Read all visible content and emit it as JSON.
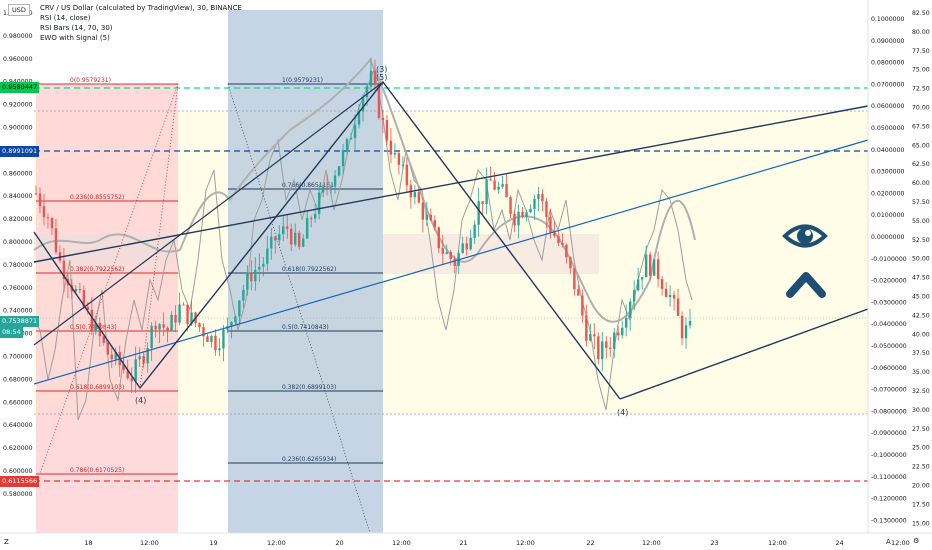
{
  "header": {
    "title": "CRV / US Dollar (calculated by TradingView), 30, BINANCE",
    "indicators": [
      "RSI (14, close)",
      "RSI Bars (14, 70, 30)",
      "EWO with Signal (5)"
    ],
    "currency_button": "USD"
  },
  "price_axis_left": [
    "1.000000",
    "0.980000",
    "0.960000",
    "0.940000",
    "0.920000",
    "0.900000",
    "0.880000",
    "0.860000",
    "0.840000",
    "0.820000",
    "0.800000",
    "0.780000",
    "0.760000",
    "0.740000",
    "0.720000",
    "0.700000",
    "0.680000",
    "0.660000",
    "0.640000",
    "0.620000",
    "0.600000",
    "0.580000"
  ],
  "ewo_axis_right": [
    "0.1000000",
    "0.0900000",
    "0.0800000",
    "0.0700000",
    "0.0600000",
    "0.0500000",
    "0.0400000",
    "0.0300000",
    "0.0200000",
    "0.0100000",
    "0.0000000",
    "-0.0100000",
    "-0.0200000",
    "-0.0300000",
    "-0.0400000",
    "-0.0500000",
    "-0.0600000",
    "-0.0700000",
    "-0.0800000",
    "-0.0900000",
    "-0.1000000",
    "-0.1100000",
    "-0.1200000",
    "-0.1300000"
  ],
  "rsi_axis_right": [
    "82.50",
    "80.00",
    "77.50",
    "75.00",
    "72.50",
    "70.00",
    "67.50",
    "65.00",
    "62.50",
    "60.00",
    "57.50",
    "55.00",
    "52.50",
    "50.00",
    "47.50",
    "45.00",
    "42.50",
    "40.00",
    "37.50",
    "35.00",
    "32.50",
    "30.00",
    "27.50",
    "25.00",
    "22.50",
    "20.00",
    "17.50",
    "15.00"
  ],
  "time_axis": [
    "18",
    "12:00",
    "19",
    "12:00",
    "20",
    "12:00",
    "21",
    "12:00",
    "22",
    "12:00",
    "23",
    "12:00",
    "24",
    "12:00"
  ],
  "price_tags": {
    "green": "0.9580447",
    "blue": "0.8991091",
    "current": "0.7538871",
    "countdown": "08:54",
    "red": "0.6115566"
  },
  "fib_left": [
    "0(0.9579231)",
    "0.236(0.8555752)",
    "0.382(0.7922562)",
    "0.5(0.7410843)",
    "0.618(0.6899103)",
    "0.786(0.6170525)"
  ],
  "fib_right": [
    "1(0.9579231)",
    "0.786(0.8651161)",
    "0.618(0.7922562)",
    "0.5(0.7410843)",
    "0.382(0.6899103)",
    "0.236(0.6265934)"
  ],
  "wave_labels": [
    "(4)",
    "(3)",
    "(5)",
    "(4)"
  ],
  "footer": {
    "left": "Z",
    "right_a": "A",
    "right_b": "⚙"
  },
  "colors": {
    "green_line": "#00e676",
    "blue_line": "#0d47a1",
    "red_line": "#e53935",
    "trend": "#1e3a5f",
    "candle_up": "#26a69a",
    "candle_down": "#ef5350",
    "rsi_bg": "#fffde7",
    "fib_red": "#ffcdd2",
    "fib_blue": "#b3c7dc"
  },
  "chart_data": {
    "type": "candlestick",
    "title": "CRV / US Dollar (calculated by TradingView), 30, BINANCE",
    "ylim": [
      0.57,
      1.02
    ],
    "x_ticks": [
      "18",
      "12:00",
      "19",
      "12:00",
      "20",
      "12:00",
      "21",
      "12:00",
      "22",
      "12:00",
      "23",
      "12:00",
      "24",
      "12:00"
    ],
    "close_path": [
      0.86,
      0.84,
      0.8,
      0.78,
      0.76,
      0.74,
      0.72,
      0.71,
      0.7,
      0.72,
      0.75,
      0.74,
      0.76,
      0.75,
      0.74,
      0.73,
      0.74,
      0.77,
      0.79,
      0.8,
      0.82,
      0.83,
      0.81,
      0.84,
      0.86,
      0.88,
      0.9,
      0.94,
      0.96,
      0.92,
      0.89,
      0.87,
      0.85,
      0.83,
      0.81,
      0.8,
      0.82,
      0.85,
      0.87,
      0.86,
      0.84,
      0.85,
      0.86,
      0.83,
      0.81,
      0.78,
      0.74,
      0.72,
      0.73,
      0.75,
      0.78,
      0.8,
      0.79,
      0.77,
      0.74
    ],
    "fib_levels_left": [
      0.9579231,
      0.8555752,
      0.7922562,
      0.7410843,
      0.6899103,
      0.6170525
    ],
    "fib_levels_right": [
      0.9579231,
      0.8651161,
      0.7922562,
      0.7410843,
      0.6899103,
      0.6265934
    ],
    "horizontal_levels": {
      "green": 0.9580447,
      "blue": 0.8991091,
      "current": 0.7538871,
      "red": 0.6115566
    }
  }
}
